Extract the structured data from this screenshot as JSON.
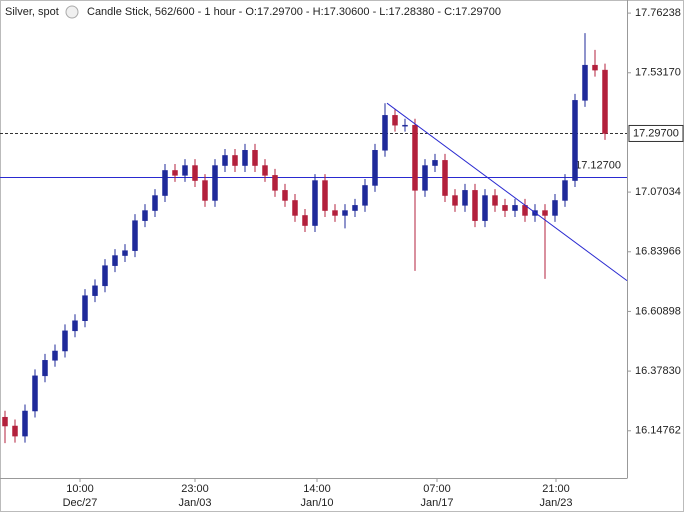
{
  "chart_data": {
    "type": "candlestick",
    "title": "Silver, spot",
    "subtitle": "Candle Stick, 562/600 - 1 hour - O:17.29700 - H:17.30600 - L:17.28380 - C:17.29700",
    "x": [
      0.5,
      1.5,
      2.5,
      3.5,
      4.5,
      5.5,
      6.5,
      7.5,
      8.5,
      9.5,
      10.5,
      11.5,
      12.5,
      13.5,
      14.5,
      15.5,
      16.5,
      17.5,
      18.5,
      19.5,
      20.5,
      21.5,
      22.5,
      23.5,
      24.5,
      25.5,
      26.5,
      27.5,
      28.5,
      29.5,
      30.5,
      31.5,
      32.5,
      33.5,
      34.5,
      35.5,
      36.5,
      37.5,
      38.5,
      39.5,
      40.5,
      41.5,
      42.5,
      43.5,
      44.5,
      45.5,
      46.5,
      47.5,
      48.5,
      49.5,
      50.5,
      51.5,
      52.5,
      53.5,
      54.5,
      55.5,
      56.5,
      57.5,
      58.5,
      59.5,
      60.5
    ],
    "open": [
      16.2,
      16.166,
      16.127,
      16.224,
      16.36,
      16.42,
      16.456,
      16.534,
      16.573,
      16.67,
      16.708,
      16.786,
      16.825,
      16.844,
      16.96,
      16.999,
      17.057,
      17.154,
      17.135,
      17.173,
      17.115,
      17.038,
      17.173,
      17.212,
      17.173,
      17.232,
      17.173,
      17.135,
      17.077,
      17.038,
      16.98,
      16.941,
      17.115,
      16.999,
      16.98,
      16.999,
      17.019,
      17.096,
      17.232,
      17.367,
      17.329,
      17.329,
      17.077,
      17.173,
      17.193,
      17.057,
      17.019,
      17.077,
      16.96,
      17.057,
      17.019,
      16.999,
      17.019,
      16.98,
      16.999,
      16.98,
      17.038,
      17.115,
      17.425,
      17.561,
      17.542
    ],
    "high": [
      16.225,
      16.191,
      16.249,
      16.385,
      16.445,
      16.481,
      16.559,
      16.598,
      16.695,
      16.733,
      16.811,
      16.85,
      16.869,
      16.985,
      17.024,
      17.082,
      17.179,
      17.179,
      17.198,
      17.198,
      17.14,
      17.198,
      17.237,
      17.237,
      17.257,
      17.257,
      17.198,
      17.16,
      17.102,
      17.063,
      17.005,
      17.14,
      17.14,
      17.024,
      17.024,
      17.044,
      17.121,
      17.257,
      17.414,
      17.392,
      17.354,
      17.354,
      17.198,
      17.218,
      17.218,
      17.082,
      17.102,
      17.102,
      17.082,
      17.082,
      17.044,
      17.044,
      17.044,
      17.024,
      17.024,
      17.063,
      17.14,
      17.45,
      17.685,
      17.62,
      17.567
    ],
    "low": [
      16.1,
      16.102,
      16.102,
      16.199,
      16.335,
      16.395,
      16.431,
      16.509,
      16.548,
      16.645,
      16.683,
      16.761,
      16.8,
      16.819,
      16.935,
      16.974,
      17.032,
      17.11,
      17.11,
      17.09,
      17.013,
      17.013,
      17.148,
      17.148,
      17.148,
      17.148,
      17.11,
      17.052,
      17.013,
      16.955,
      16.916,
      16.916,
      16.974,
      16.955,
      16.93,
      16.974,
      16.994,
      17.071,
      17.207,
      17.304,
      17.304,
      16.766,
      17.052,
      17.148,
      17.032,
      16.994,
      16.994,
      16.935,
      16.935,
      16.994,
      16.974,
      16.974,
      16.955,
      16.955,
      16.735,
      16.955,
      17.013,
      17.09,
      17.4,
      17.517,
      17.272
    ],
    "close": [
      16.166,
      16.127,
      16.224,
      16.36,
      16.42,
      16.456,
      16.534,
      16.573,
      16.67,
      16.708,
      16.786,
      16.825,
      16.844,
      16.96,
      16.999,
      17.057,
      17.154,
      17.135,
      17.173,
      17.115,
      17.038,
      17.173,
      17.212,
      17.173,
      17.232,
      17.173,
      17.135,
      17.077,
      17.038,
      16.98,
      16.941,
      17.115,
      16.999,
      16.98,
      16.999,
      17.019,
      17.096,
      17.232,
      17.367,
      17.329,
      17.329,
      17.077,
      17.173,
      17.193,
      17.057,
      17.019,
      17.077,
      16.96,
      17.057,
      17.019,
      16.999,
      17.019,
      16.98,
      16.999,
      16.98,
      17.038,
      17.115,
      17.425,
      17.561,
      17.542,
      17.297
    ],
    "up_color": "#1f2a9a",
    "down_color": "#b3203c",
    "xlim": [
      0,
      62.7
    ],
    "ylim": [
      15.965,
      17.813
    ],
    "xticks": [
      {
        "value": 8.0,
        "label": "10:00"
      },
      {
        "value": 19.5,
        "label": "23:00"
      },
      {
        "value": 31.7,
        "label": "14:00"
      },
      {
        "value": 43.7,
        "label": "07:00"
      },
      {
        "value": 55.6,
        "label": "21:00"
      }
    ],
    "xtick_dates": [
      "Dec/27",
      "Jan/03",
      "Jan/10",
      "Jan/17",
      "Jan/23"
    ],
    "yticks": [
      17.76238,
      {
        "value": 17.5317,
        "label": "17.53170"
      },
      17.07034,
      16.83966,
      16.60898,
      {
        "value": 16.3783,
        "label": "16.37830"
      },
      16.14762
    ],
    "current_price": {
      "value": 17.297,
      "label": "17.29700"
    },
    "horizontal_line": {
      "value": 17.127,
      "label": "17.12700",
      "color": "#2a2ad0"
    },
    "trend_line": {
      "x": [
        38.7,
        62.7
      ],
      "y": [
        17.414,
        16.728
      ],
      "color": "#2a2ad0"
    }
  }
}
